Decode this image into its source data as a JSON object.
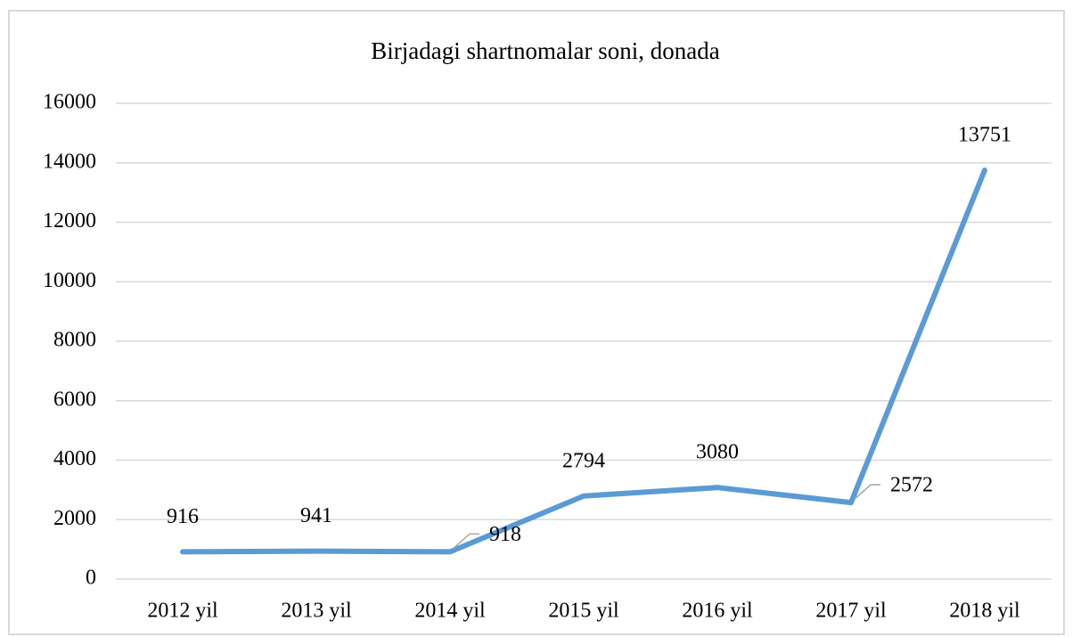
{
  "chart_data": {
    "type": "line",
    "title": "Birjadagi shartnomalar soni, donada",
    "categories": [
      "2012 yil",
      "2013 yil",
      "2014 yil",
      "2015 yil",
      "2016 yil",
      "2017 yil",
      "2018 yil"
    ],
    "series": [
      {
        "name": "Birjadagi shartnomalar soni",
        "color": "#5b9bd5",
        "values": [
          916,
          941,
          918,
          2794,
          3080,
          2572,
          13751
        ]
      }
    ],
    "ylim": [
      0,
      16000
    ],
    "yticks": [
      0,
      2000,
      4000,
      6000,
      8000,
      10000,
      12000,
      14000,
      16000
    ],
    "grid": true
  }
}
